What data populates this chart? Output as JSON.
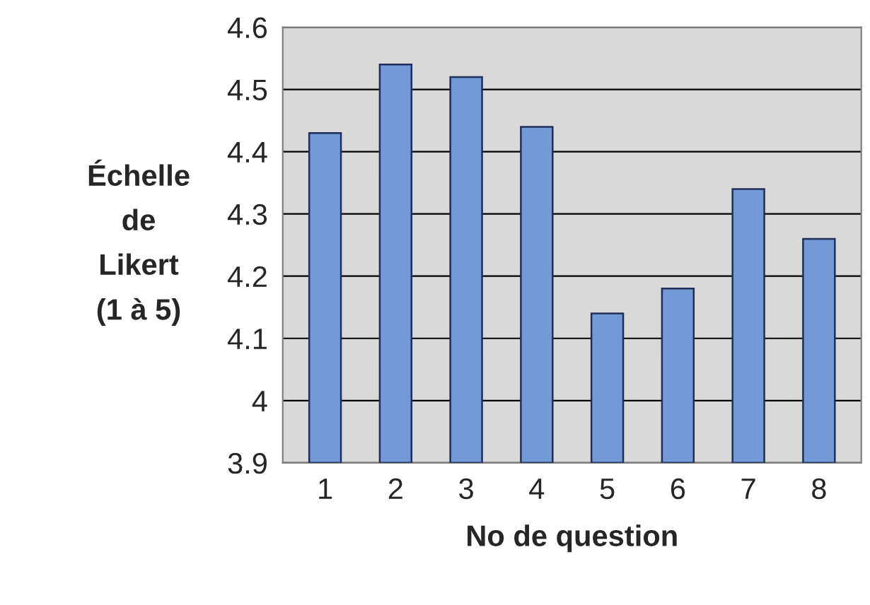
{
  "chart_data": {
    "type": "bar",
    "xlabel": "No de question",
    "ylabel": "Échelle\nde\nLikert\n(1 à 5)",
    "categories": [
      "1",
      "2",
      "3",
      "4",
      "5",
      "6",
      "7",
      "8"
    ],
    "values": [
      4.43,
      4.54,
      4.52,
      4.44,
      4.14,
      4.18,
      4.34,
      4.26
    ],
    "color": "#7399d6",
    "ylim": [
      3.9,
      4.6
    ],
    "yticks": [
      3.9,
      4,
      4.1,
      4.2,
      4.3,
      4.4,
      4.5,
      4.6
    ],
    "grid": "y",
    "legend": false
  }
}
